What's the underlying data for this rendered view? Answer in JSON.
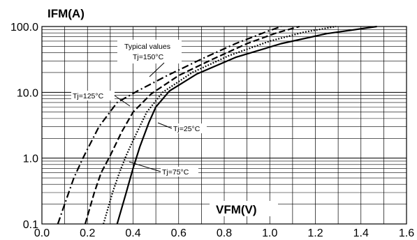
{
  "chart_data": {
    "type": "line",
    "ylabel": "IFM(A)",
    "xlabel": "VFM(V)",
    "xlim": [
      0.0,
      1.6
    ],
    "ylim": [
      0.1,
      100.0
    ],
    "yscale": "log",
    "grid": true,
    "x_ticks": [
      "0.0",
      "0.2",
      "0.4",
      "0.6",
      "0.8",
      "1.0",
      "1.2",
      "1.4",
      "1.6"
    ],
    "y_ticks": [
      "0.1",
      "1.0",
      "10.0",
      "100.0"
    ],
    "series": [
      {
        "name": "Tj=150°C",
        "style": "dash-dot",
        "points": [
          [
            0.07,
            0.1
          ],
          [
            0.1,
            0.2
          ],
          [
            0.14,
            0.5
          ],
          [
            0.18,
            1.0
          ],
          [
            0.25,
            3.0
          ],
          [
            0.33,
            7.0
          ],
          [
            0.42,
            10.5
          ],
          [
            0.55,
            18.0
          ],
          [
            0.7,
            32.0
          ],
          [
            0.85,
            55.0
          ],
          [
            0.98,
            82.0
          ],
          [
            1.05,
            100.0
          ]
        ]
      },
      {
        "name": "Tj=125°C",
        "style": "dashed",
        "points": [
          [
            0.19,
            0.1
          ],
          [
            0.23,
            0.3
          ],
          [
            0.26,
            0.6
          ],
          [
            0.3,
            1.1
          ],
          [
            0.35,
            2.5
          ],
          [
            0.4,
            5.0
          ],
          [
            0.48,
            9.5
          ],
          [
            0.6,
            18.0
          ],
          [
            0.75,
            32.0
          ],
          [
            0.9,
            55.0
          ],
          [
            1.03,
            80.0
          ],
          [
            1.13,
            100.0
          ]
        ]
      },
      {
        "name": "Tj=75°C",
        "style": "dotted",
        "points": [
          [
            0.27,
            0.1
          ],
          [
            0.31,
            0.3
          ],
          [
            0.34,
            0.6
          ],
          [
            0.37,
            1.1
          ],
          [
            0.41,
            2.2
          ],
          [
            0.46,
            5.0
          ],
          [
            0.53,
            10.0
          ],
          [
            0.66,
            20.0
          ],
          [
            0.82,
            36.0
          ],
          [
            1.0,
            60.0
          ],
          [
            1.15,
            82.0
          ],
          [
            1.29,
            100.0
          ]
        ]
      },
      {
        "name": "Tj=25°C",
        "style": "solid",
        "points": [
          [
            0.33,
            0.1
          ],
          [
            0.37,
            0.3
          ],
          [
            0.4,
            0.7
          ],
          [
            0.43,
            1.5
          ],
          [
            0.47,
            3.5
          ],
          [
            0.5,
            6.0
          ],
          [
            0.56,
            10.5
          ],
          [
            0.68,
            19.0
          ],
          [
            0.85,
            34.0
          ],
          [
            1.05,
            55.0
          ],
          [
            1.25,
            78.0
          ],
          [
            1.47,
            100.0
          ]
        ]
      }
    ],
    "annotations": [
      "Typical values",
      "Tj=150°C",
      "Tj=125°C",
      "Tj=25°C",
      "Tj=75°C"
    ]
  }
}
